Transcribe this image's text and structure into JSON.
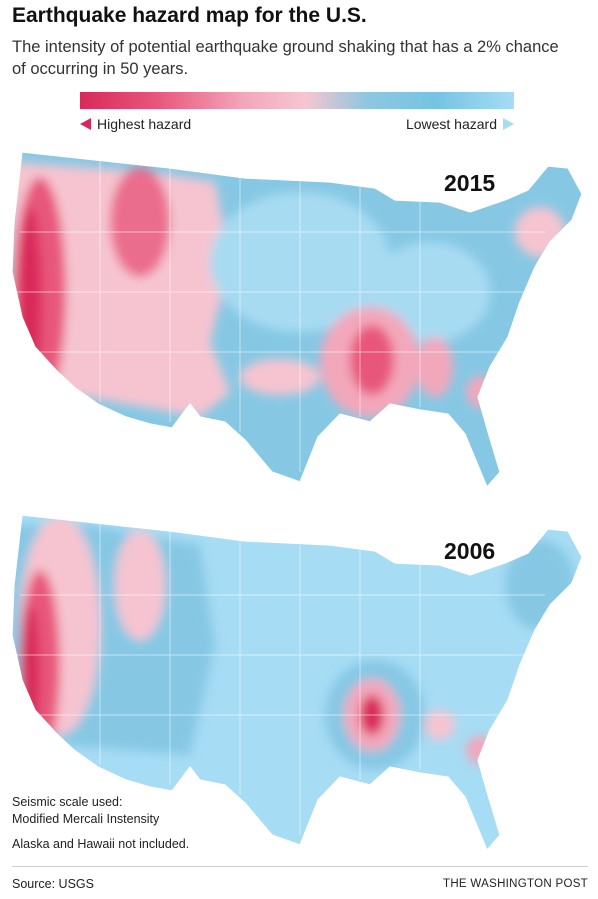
{
  "title": "Earthquake hazard map for the U.S.",
  "subtitle": "The intensity of potential earthquake ground shaking that has a 2% chance of occurring in 50 years.",
  "legend": {
    "high_label": "Highest hazard",
    "low_label": "Lowest hazard",
    "colors": [
      "#d92a5a",
      "#e8577c",
      "#f3a7bb",
      "#f6c6d1",
      "#8fc6e0",
      "#75c4e3",
      "#a6dcf4"
    ]
  },
  "maps": [
    {
      "year": "2015"
    },
    {
      "year": "2006"
    }
  ],
  "notes": {
    "scale_heading": "Seismic scale used:",
    "scale_name": "Modified Mercali Instensity",
    "exclusion": "Alaska and Hawaii not included."
  },
  "footer": {
    "source": "Source: USGS",
    "credit": "THE WASHINGTON POST"
  }
}
